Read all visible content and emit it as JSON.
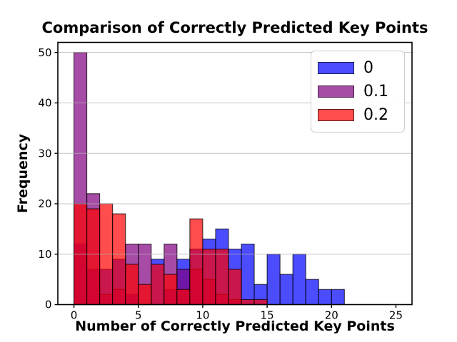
{
  "chart_data": {
    "type": "bar",
    "subtype": "overlapping-histogram",
    "title": "Comparison of Correctly Predicted Key Points",
    "xlabel": "Number of Correctly Predicted Key Points",
    "ylabel": "Frequency",
    "bin_start": 0,
    "bin_width": 1,
    "xlim": [
      -1.25,
      26.25
    ],
    "ylim": [
      0,
      52
    ],
    "xticks": [
      0,
      5,
      10,
      15,
      20,
      25
    ],
    "yticks": [
      0,
      10,
      20,
      30,
      40,
      50
    ],
    "grid": "horizontal",
    "grid_color": "#b0b0b0",
    "legend_position": "upper-right",
    "bar_alpha": 0.7,
    "bar_edge_color": "rgba(0,0,0,0.75)",
    "axes_color": "#000000",
    "series": [
      {
        "label": "0",
        "color": "#0000ff",
        "values": [
          12,
          7,
          7,
          9,
          2,
          0,
          9,
          3,
          9,
          11,
          13,
          15,
          11,
          12,
          4,
          10,
          6,
          10,
          5,
          3,
          3
        ]
      },
      {
        "label": "0.1",
        "color": "#800080",
        "values": [
          50,
          22,
          2,
          3,
          12,
          12,
          0,
          12,
          7,
          7,
          5,
          2,
          1,
          0,
          0,
          0,
          0,
          0,
          0,
          0,
          0
        ]
      },
      {
        "label": "0.2",
        "color": "#ff0000",
        "values": [
          20,
          19,
          20,
          18,
          8,
          4,
          8,
          6,
          3,
          17,
          11,
          11,
          7,
          1,
          1,
          0,
          0,
          0,
          0,
          0,
          0
        ]
      }
    ]
  }
}
